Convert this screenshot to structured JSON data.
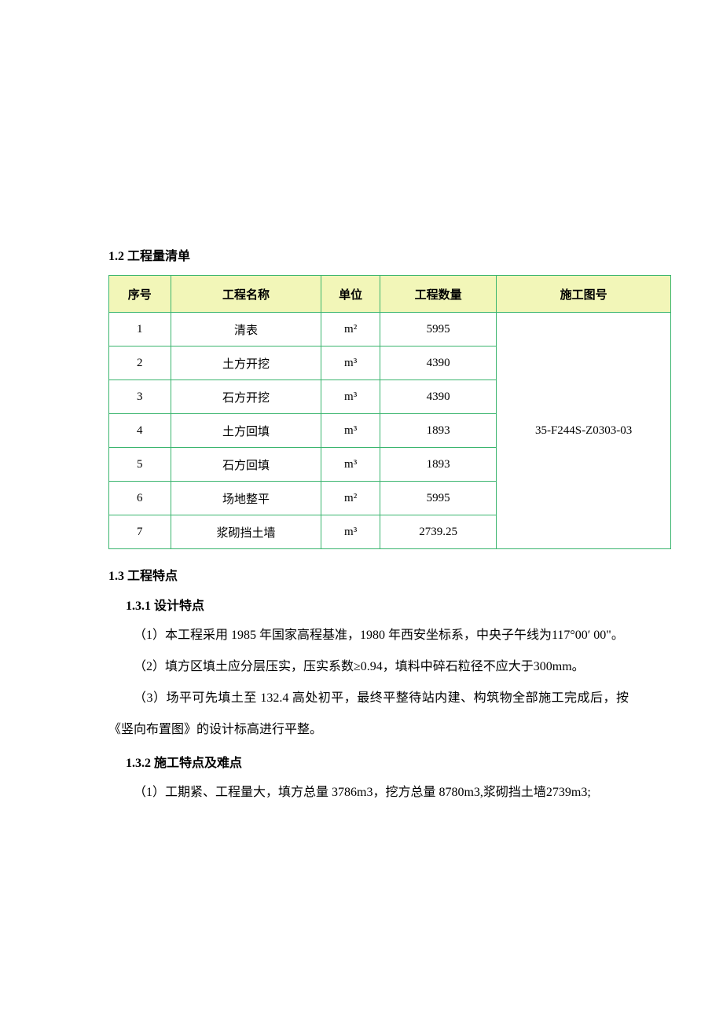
{
  "section_1_2": {
    "title": "1.2 工程量清单"
  },
  "table": {
    "header_bg": "#f2f6b8",
    "border_color": "#3ab56e",
    "columns": {
      "seq": "序号",
      "name": "工程名称",
      "unit": "单位",
      "qty": "工程数量",
      "drawing": "施工图号"
    },
    "rows": [
      {
        "seq": "1",
        "name": "清表",
        "unit": "m²",
        "qty": "5995"
      },
      {
        "seq": "2",
        "name": "土方开挖",
        "unit": "m³",
        "qty": "4390"
      },
      {
        "seq": "3",
        "name": "石方开挖",
        "unit": "m³",
        "qty": "4390"
      },
      {
        "seq": "4",
        "name": "土方回填",
        "unit": "m³",
        "qty": "1893"
      },
      {
        "seq": "5",
        "name": "石方回填",
        "unit": "m³",
        "qty": "1893"
      },
      {
        "seq": "6",
        "name": "场地整平",
        "unit": "m²",
        "qty": "5995"
      },
      {
        "seq": "7",
        "name": "浆砌挡土墙",
        "unit": "m³",
        "qty": "2739.25"
      }
    ],
    "drawing_number": "35-F244S-Z0303-03"
  },
  "section_1_3": {
    "title": "1.3 工程特点"
  },
  "section_1_3_1": {
    "title": "1.3.1 设计特点",
    "p1": "（1）本工程采用 1985 年国家高程基准，1980 年西安坐标系，中央子午线为117°00′ 00\"。",
    "p2": "（2）填方区填土应分层压实，压实系数≥0.94，填料中碎石粒径不应大于300mm。",
    "p3": "（3）场平可先填土至 132.4 高处初平，最终平整待站内建、构筑物全部施工完成后，按《竖向布置图》的设计标高进行平整。"
  },
  "section_1_3_2": {
    "title": "1.3.2 施工特点及难点",
    "p1": "（1）工期紧、工程量大，填方总量 3786m3，挖方总量 8780m3,浆砌挡土墙2739m3;"
  }
}
